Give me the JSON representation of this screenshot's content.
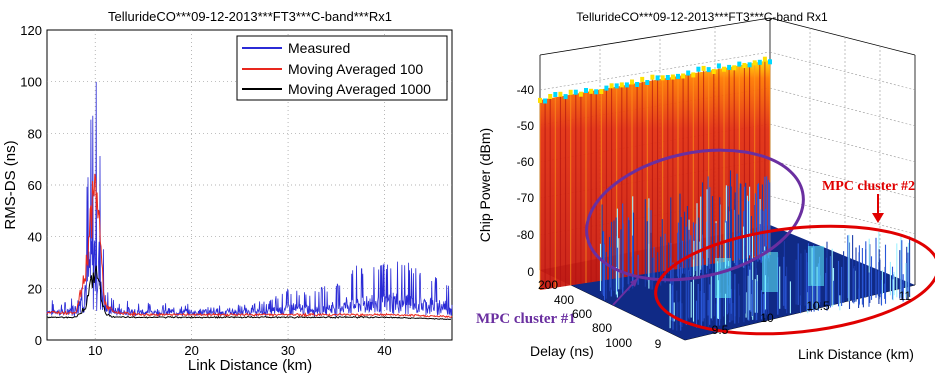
{
  "chart_data": [
    {
      "type": "line",
      "title": "TellurideCO***09-12-2013***FT3***C-band***Rx1",
      "xlabel": "Link Distance (km)",
      "ylabel": "RMS-DS (ns)",
      "xlim": [
        5,
        47
      ],
      "ylim": [
        0,
        120
      ],
      "xticks": [
        10,
        20,
        30,
        40
      ],
      "yticks": [
        0,
        20,
        40,
        60,
        80,
        100,
        120
      ],
      "grid": true,
      "legend_position": "top-right",
      "series": [
        {
          "name": "Measured",
          "color": "#2b2bd6",
          "x": [
            5,
            7,
            8,
            9,
            9.5,
            10,
            10.3,
            10.6,
            11,
            12,
            15,
            20,
            25,
            28,
            30,
            32,
            35,
            37,
            40,
            42,
            44,
            47
          ],
          "y": [
            15,
            14,
            20,
            55,
            85,
            108,
            95,
            70,
            20,
            15,
            14,
            13,
            13,
            15,
            20,
            18,
            22,
            28,
            30,
            32,
            26,
            22
          ]
        },
        {
          "name": "Moving Averaged 100",
          "color": "#e8281e",
          "x": [
            5,
            8,
            9,
            9.5,
            10,
            10.3,
            10.6,
            11,
            12,
            15,
            20,
            30,
            40,
            47
          ],
          "y": [
            11,
            11,
            30,
            55,
            70,
            65,
            40,
            15,
            11,
            10,
            10,
            10,
            10,
            9
          ]
        },
        {
          "name": "Moving Averaged 1000",
          "color": "#000000",
          "x": [
            5,
            8,
            9,
            9.5,
            10,
            10.3,
            10.6,
            11,
            12,
            15,
            20,
            30,
            40,
            47
          ],
          "y": [
            9,
            9,
            14,
            24,
            30,
            28,
            20,
            11,
            9,
            9,
            9,
            9,
            9,
            8
          ]
        }
      ]
    },
    {
      "type": "surface3d",
      "title": "TellurideCO***09-12-2013***FT3***C-band Rx1",
      "xlabel": "Link Distance (km)",
      "ylabel": "Delay (ns)",
      "zlabel": "Chip Power (dBm)",
      "xticks": [
        "9",
        "9.5",
        "10",
        "10.5",
        "11"
      ],
      "yticks": [
        "200",
        "400",
        "600",
        "800",
        "1000"
      ],
      "zticks": [
        "-40",
        "-50",
        "-60",
        "-70",
        "-80",
        "0"
      ],
      "annotations": [
        {
          "text": "MPC cluster #1",
          "color": "#6a2fa0"
        },
        {
          "text": "MPC cluster #2",
          "color": "#e00000"
        }
      ]
    }
  ]
}
